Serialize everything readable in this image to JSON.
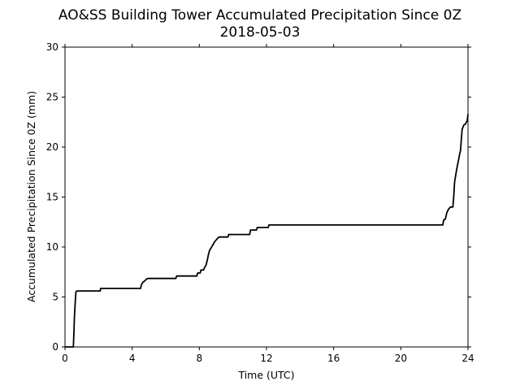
{
  "chart_data": {
    "type": "line",
    "title": "AO&SS Building Tower Accumulated Precipitation Since 0Z",
    "subtitle": "2018-05-03",
    "xlabel": "Time (UTC)",
    "ylabel": "Accumulated Precipitation Since 0Z (mm)",
    "xlim": [
      0,
      24
    ],
    "ylim": [
      0,
      30
    ],
    "xticks": [
      0,
      4,
      8,
      12,
      16,
      20,
      24
    ],
    "yticks": [
      0,
      5,
      10,
      15,
      20,
      25,
      30
    ],
    "grid": false,
    "line_color": "#000000",
    "series": [
      {
        "x": [
          0.0,
          0.5,
          0.53,
          0.56,
          0.6,
          0.65,
          0.7,
          0.75,
          2.1,
          2.12,
          4.5,
          4.55,
          4.65,
          4.75,
          4.85,
          4.95,
          5.05,
          6.6,
          6.65,
          7.85,
          7.9,
          8.05,
          8.1,
          8.25,
          8.3,
          8.4,
          8.45,
          8.5,
          8.55,
          8.6,
          8.65,
          8.7,
          8.8,
          8.9,
          9.0,
          9.1,
          9.2,
          9.3,
          9.7,
          9.75,
          11.0,
          11.05,
          11.4,
          11.45,
          12.1,
          12.15,
          22.5,
          22.55,
          22.65,
          22.75,
          22.85,
          22.95,
          23.1,
          23.15,
          23.2,
          23.3,
          23.35,
          23.45,
          23.5,
          23.55,
          23.65,
          23.75,
          23.85,
          23.9,
          23.95,
          24.0
        ],
        "y": [
          0.0,
          0.0,
          1.5,
          3.0,
          4.2,
          5.5,
          5.6,
          5.6,
          5.6,
          5.85,
          5.85,
          6.2,
          6.5,
          6.6,
          6.8,
          6.85,
          6.85,
          6.85,
          7.1,
          7.1,
          7.4,
          7.4,
          7.7,
          7.7,
          7.9,
          8.2,
          8.5,
          8.9,
          9.3,
          9.6,
          9.8,
          9.9,
          10.2,
          10.5,
          10.7,
          10.9,
          11.0,
          11.0,
          11.0,
          11.25,
          11.25,
          11.7,
          11.7,
          11.95,
          11.95,
          12.2,
          12.2,
          12.7,
          12.8,
          13.5,
          13.8,
          14.0,
          14.0,
          15.0,
          16.5,
          17.5,
          18.0,
          18.8,
          19.3,
          19.6,
          21.8,
          22.2,
          22.3,
          22.5,
          22.6,
          23.3
        ]
      }
    ]
  }
}
